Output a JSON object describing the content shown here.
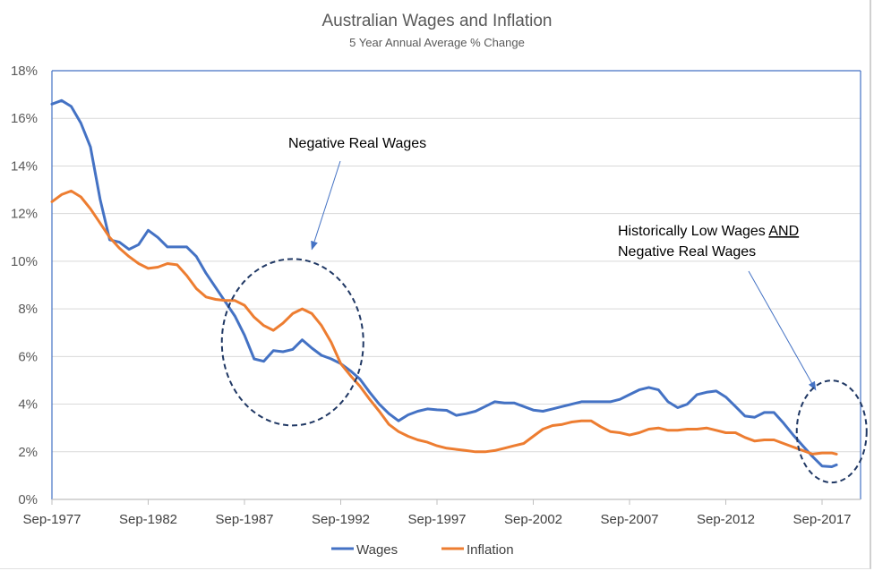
{
  "chart_data": {
    "type": "line",
    "title": "Australian Wages and Inflation",
    "subtitle": "5 Year Annual Average % Change",
    "xlabel": "",
    "ylabel": "",
    "ylim": [
      0,
      18
    ],
    "xlim": [
      "1977-09",
      "2019-09"
    ],
    "y_ticks": [
      "0%",
      "2%",
      "4%",
      "6%",
      "8%",
      "10%",
      "12%",
      "14%",
      "16%",
      "18%"
    ],
    "x_ticks": [
      {
        "date": "1977-09",
        "label": "Sep-1977"
      },
      {
        "date": "1982-09",
        "label": "Sep-1982"
      },
      {
        "date": "1987-09",
        "label": "Sep-1987"
      },
      {
        "date": "1992-09",
        "label": "Sep-1992"
      },
      {
        "date": "1997-09",
        "label": "Sep-1997"
      },
      {
        "date": "2002-09",
        "label": "Sep-2002"
      },
      {
        "date": "2007-09",
        "label": "Sep-2007"
      },
      {
        "date": "2012-09",
        "label": "Sep-2012"
      },
      {
        "date": "2017-09",
        "label": "Sep-2017"
      }
    ],
    "grid": true,
    "legend_position": "bottom",
    "x": [
      "1977-09",
      "1978-03",
      "1978-09",
      "1979-03",
      "1979-09",
      "1980-03",
      "1980-09",
      "1981-03",
      "1981-09",
      "1982-03",
      "1982-09",
      "1983-03",
      "1983-09",
      "1984-03",
      "1984-09",
      "1985-03",
      "1985-09",
      "1986-03",
      "1986-09",
      "1987-03",
      "1987-09",
      "1988-03",
      "1988-09",
      "1989-03",
      "1989-09",
      "1990-03",
      "1990-09",
      "1991-03",
      "1991-09",
      "1992-03",
      "1992-09",
      "1993-03",
      "1993-09",
      "1994-03",
      "1994-09",
      "1995-03",
      "1995-09",
      "1996-03",
      "1996-09",
      "1997-03",
      "1997-09",
      "1998-03",
      "1998-09",
      "1999-03",
      "1999-09",
      "2000-03",
      "2000-09",
      "2001-03",
      "2001-09",
      "2002-03",
      "2002-09",
      "2003-03",
      "2003-09",
      "2004-03",
      "2004-09",
      "2005-03",
      "2005-09",
      "2006-03",
      "2006-09",
      "2007-03",
      "2007-09",
      "2008-03",
      "2008-09",
      "2009-03",
      "2009-09",
      "2010-03",
      "2010-09",
      "2011-03",
      "2011-09",
      "2012-03",
      "2012-09",
      "2013-03",
      "2013-09",
      "2014-03",
      "2014-09",
      "2015-03",
      "2015-09",
      "2016-03",
      "2016-09",
      "2017-03",
      "2017-09",
      "2018-03",
      "2018-06"
    ],
    "series": [
      {
        "name": "Wages",
        "color": "#4472C4",
        "values": [
          16.6,
          16.75,
          16.5,
          15.8,
          14.8,
          12.6,
          10.9,
          10.8,
          10.5,
          10.7,
          11.3,
          11.0,
          10.6,
          10.6,
          10.6,
          10.2,
          9.5,
          8.9,
          8.3,
          7.7,
          6.9,
          5.9,
          5.8,
          6.25,
          6.2,
          6.3,
          6.7,
          6.35,
          6.05,
          5.9,
          5.7,
          5.4,
          5.05,
          4.5,
          4.0,
          3.6,
          3.3,
          3.55,
          3.7,
          3.8,
          3.76,
          3.74,
          3.53,
          3.6,
          3.7,
          3.9,
          4.1,
          4.05,
          4.05,
          3.9,
          3.75,
          3.7,
          3.8,
          3.9,
          4.0,
          4.1,
          4.1,
          4.1,
          4.1,
          4.2,
          4.4,
          4.6,
          4.7,
          4.6,
          4.1,
          3.85,
          4.0,
          4.4,
          4.5,
          4.55,
          4.3,
          3.9,
          3.5,
          3.45,
          3.65,
          3.65,
          3.2,
          2.7,
          2.25,
          1.8,
          1.4,
          1.37,
          1.45
        ]
      },
      {
        "name": "Inflation",
        "color": "#ED7D31",
        "values": [
          12.5,
          12.8,
          12.95,
          12.7,
          12.2,
          11.6,
          11.0,
          10.55,
          10.2,
          9.9,
          9.7,
          9.75,
          9.9,
          9.85,
          9.4,
          8.85,
          8.5,
          8.4,
          8.35,
          8.35,
          8.15,
          7.65,
          7.3,
          7.1,
          7.4,
          7.8,
          8.0,
          7.8,
          7.3,
          6.6,
          5.7,
          5.2,
          4.75,
          4.2,
          3.7,
          3.15,
          2.85,
          2.65,
          2.5,
          2.4,
          2.25,
          2.15,
          2.1,
          2.05,
          2.0,
          2.0,
          2.05,
          2.15,
          2.25,
          2.35,
          2.65,
          2.95,
          3.1,
          3.15,
          3.25,
          3.3,
          3.3,
          3.05,
          2.85,
          2.8,
          2.7,
          2.8,
          2.95,
          3.0,
          2.9,
          2.9,
          2.95,
          2.95,
          3.0,
          2.9,
          2.8,
          2.8,
          2.6,
          2.45,
          2.5,
          2.5,
          2.35,
          2.2,
          2.05,
          1.9,
          1.95,
          1.95,
          1.9
        ]
      }
    ],
    "annotations": [
      {
        "lines": [
          [
            {
              "text": "Negative Real Wages",
              "underline": false
            }
          ]
        ],
        "arrow_to": {
          "date": "1991-03",
          "value": 10.5
        },
        "highlight_center": {
          "date": "1990-03",
          "value": 6.6
        }
      },
      {
        "lines": [
          [
            {
              "text": "Historically Low Wages ",
              "underline": false
            },
            {
              "text": "AND",
              "underline": true
            }
          ],
          [
            {
              "text": "Negative Real Wages",
              "underline": false
            }
          ]
        ],
        "arrow_to": {
          "date": "2017-05",
          "value": 4.6
        },
        "highlight_center": {
          "date": "2018-03",
          "value": 2.85
        }
      }
    ]
  }
}
